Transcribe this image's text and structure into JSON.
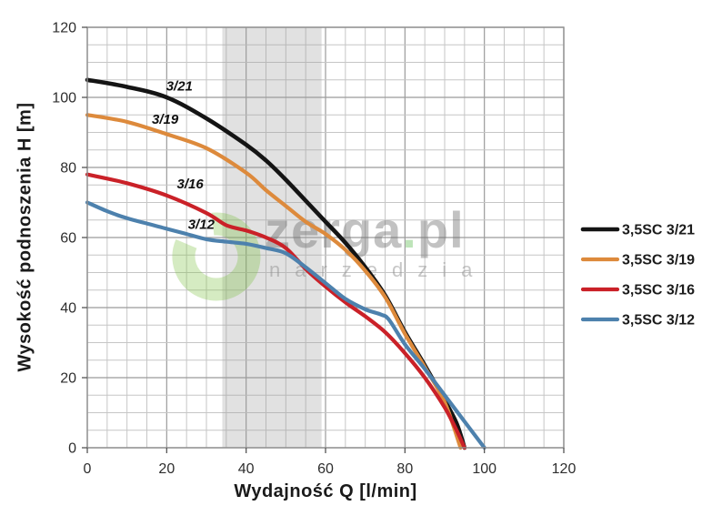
{
  "chart_data": {
    "type": "line",
    "title": "",
    "xlabel": "Wydajność Q [l/min]",
    "ylabel": "Wysokość podnoszenia H [m]",
    "xlim": [
      0,
      120
    ],
    "ylim": [
      0,
      120
    ],
    "x_ticks": [
      0,
      20,
      40,
      60,
      80,
      100,
      120
    ],
    "y_ticks": [
      0,
      20,
      40,
      60,
      80,
      100,
      120
    ],
    "minor_grid_step": 5,
    "grid": true,
    "legend_position": "right",
    "highlight_band": {
      "x_from": 34,
      "x_to": 59
    },
    "series": [
      {
        "name": "3,5SC 3/21",
        "curve_label": "3/21",
        "curve_label_at": [
          23.2,
          102.0
        ],
        "color": "#141414",
        "width": 4.6,
        "points": [
          [
            0,
            105
          ],
          [
            10,
            103
          ],
          [
            20,
            100
          ],
          [
            30,
            94
          ],
          [
            40,
            86.5
          ],
          [
            45,
            82
          ],
          [
            50,
            76.5
          ],
          [
            55,
            70.5
          ],
          [
            60,
            64.5
          ],
          [
            65,
            58.5
          ],
          [
            70,
            51.5
          ],
          [
            75,
            43.5
          ],
          [
            80,
            33
          ],
          [
            85,
            23.5
          ],
          [
            90,
            13.5
          ],
          [
            93,
            7
          ],
          [
            95,
            0
          ]
        ]
      },
      {
        "name": "3,5SC 3/19",
        "curve_label": "3/19",
        "curve_label_at": [
          19.6,
          92.5
        ],
        "color": "#dd8a3c",
        "width": 4.2,
        "points": [
          [
            0,
            95
          ],
          [
            10,
            93
          ],
          [
            20,
            89.5
          ],
          [
            30,
            85.5
          ],
          [
            40,
            78.5
          ],
          [
            45,
            73.5
          ],
          [
            50,
            69
          ],
          [
            55,
            64.5
          ],
          [
            60,
            61
          ],
          [
            65,
            56.5
          ],
          [
            70,
            50.5
          ],
          [
            75,
            43
          ],
          [
            80,
            32.5
          ],
          [
            85,
            23
          ],
          [
            90,
            13
          ],
          [
            94,
            0
          ]
        ]
      },
      {
        "name": "3,5SC 3/16",
        "curve_label": "3/16",
        "curve_label_at": [
          25.9,
          74.0
        ],
        "color": "#ca2128",
        "width": 4.2,
        "points": [
          [
            0,
            78
          ],
          [
            10,
            75.5
          ],
          [
            20,
            72
          ],
          [
            30,
            67
          ],
          [
            35,
            63.5
          ],
          [
            40,
            62
          ],
          [
            45,
            60
          ],
          [
            50,
            57
          ],
          [
            55,
            51
          ],
          [
            60,
            46
          ],
          [
            65,
            41.5
          ],
          [
            70,
            37.5
          ],
          [
            75,
            33
          ],
          [
            80,
            27
          ],
          [
            85,
            20
          ],
          [
            90,
            11.5
          ],
          [
            93,
            5
          ],
          [
            95,
            0
          ]
        ]
      },
      {
        "name": "3,5SC 3/12",
        "curve_label": "3/12",
        "curve_label_at": [
          28.7,
          62.5
        ],
        "color": "#4d81ad",
        "width": 4.2,
        "points": [
          [
            0,
            70
          ],
          [
            5,
            67.5
          ],
          [
            10,
            65.5
          ],
          [
            15,
            64
          ],
          [
            20,
            62.5
          ],
          [
            25,
            61
          ],
          [
            30,
            59.5
          ],
          [
            35,
            58.8
          ],
          [
            40,
            58.2
          ],
          [
            45,
            57
          ],
          [
            50,
            55.5
          ],
          [
            55,
            51.5
          ],
          [
            60,
            47
          ],
          [
            65,
            42.5
          ],
          [
            70,
            39.5
          ],
          [
            74,
            38
          ],
          [
            76,
            36.5
          ],
          [
            80,
            29.5
          ],
          [
            85,
            22.5
          ],
          [
            90,
            15
          ],
          [
            95,
            7.5
          ],
          [
            100,
            0
          ]
        ]
      }
    ]
  },
  "watermark": {
    "brand_main": "zerga",
    "brand_dot": ".",
    "brand_tld": "pl",
    "subtitle": "narzędzia",
    "dot_color": "#56b948"
  },
  "colors": {
    "background": "#ffffff",
    "minor_grid": "#c6c6c6",
    "major_grid": "#9b9b9b",
    "border": "#8f8f8f",
    "band_fill": "#9b9b9b",
    "band_opacity": "0.30",
    "tick_text": "#2e2e2e",
    "curve_label_text": "#101010",
    "legend_text": "#1c1c1c",
    "watermark_brand": "#6f6f6f",
    "watermark_subtitle": "#8f8f8f",
    "logo_green": "#7cc242"
  }
}
